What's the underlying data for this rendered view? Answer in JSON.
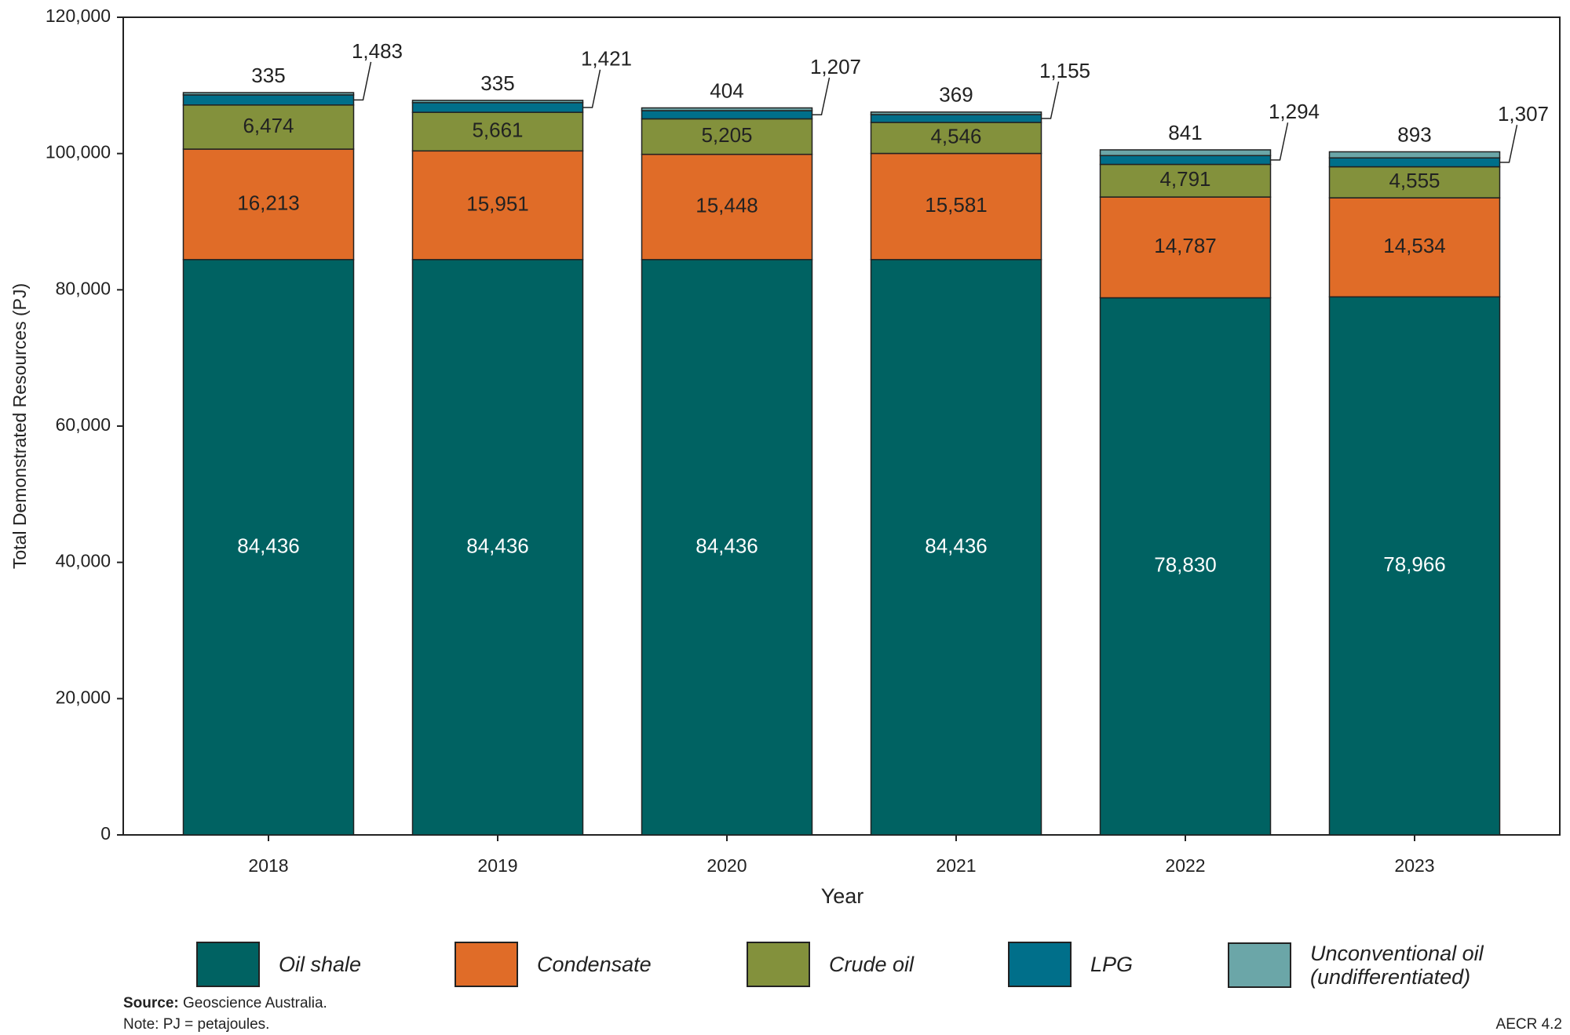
{
  "chart_data": {
    "type": "stacked_bar",
    "y_label": "Total Demonstrated Resources (PJ)",
    "x_label": "Year",
    "categories": [
      "2018",
      "2019",
      "2020",
      "2021",
      "2022",
      "2023"
    ],
    "series": [
      {
        "name": "Oil shale",
        "color": "#006262",
        "values": [
          84436,
          84436,
          84436,
          84436,
          78830,
          78966
        ],
        "value_labels": [
          "84,436",
          "84,436",
          "84,436",
          "84,436",
          "78,830",
          "78,966"
        ]
      },
      {
        "name": "Condensate",
        "color": "#e06c28",
        "values": [
          16213,
          15951,
          15448,
          15581,
          14787,
          14534
        ],
        "value_labels": [
          "16,213",
          "15,951",
          "15,448",
          "15,581",
          "14,787",
          "14,534"
        ]
      },
      {
        "name": "Crude oil",
        "color": "#83913c",
        "values": [
          6474,
          5661,
          5205,
          4546,
          4791,
          4555
        ],
        "value_labels": [
          "6,474",
          "5,661",
          "5,205",
          "4,546",
          "4,791",
          "4,555"
        ]
      },
      {
        "name": "LPG",
        "color": "#006f8a",
        "values": [
          1483,
          1421,
          1207,
          1155,
          1294,
          1307
        ],
        "value_labels": [
          "1,483",
          "1,421",
          "1,207",
          "1,155",
          "1,294",
          "1,307"
        ]
      },
      {
        "name": "Unconventional oil (undifferentiated)",
        "color": "#6ba6a8",
        "values": [
          335,
          335,
          404,
          369,
          841,
          893
        ]
      }
    ],
    "ylim": [
      0,
      120000
    ],
    "yticks": [
      0,
      {
        "value": 20000,
        "label": "20,000"
      },
      {
        "value": 40000,
        "label": "40,000"
      },
      {
        "value": 60000,
        "label": "60,000"
      },
      {
        "value": 80000,
        "label": "80,000"
      },
      {
        "value": 100000,
        "label": "100,000"
      },
      {
        "value": 120000,
        "label": "120,000"
      }
    ],
    "source_label": "Source:",
    "source": "Geoscience Australia.",
    "note": "Note: PJ = petajoules.",
    "figure_id": "AECR 4.2"
  }
}
